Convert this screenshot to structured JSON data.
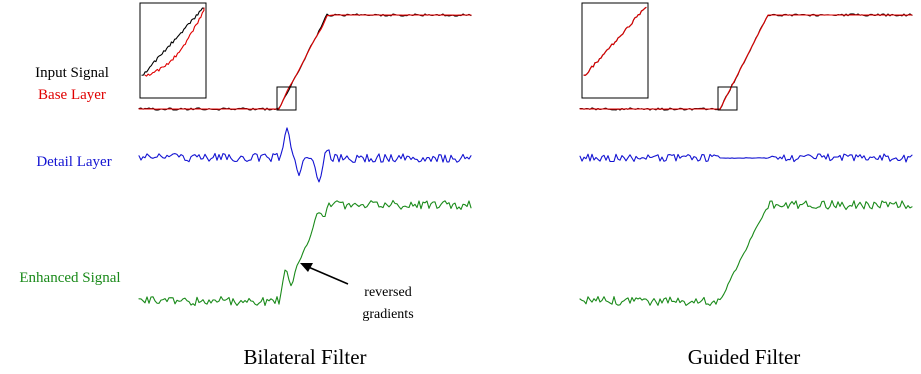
{
  "colors": {
    "input": "#000000",
    "base": "#e00000",
    "detail": "#1414d2",
    "enhanced": "#1a8a1a",
    "text": "#000000"
  },
  "labels": {
    "input_signal": "Input Signal",
    "base_layer": "Base Layer",
    "detail_layer": "Detail Layer",
    "enhanced_signal": "Enhanced Signal"
  },
  "panels": [
    {
      "caption": "Bilateral Filter"
    },
    {
      "caption": "Guided Filter"
    }
  ],
  "annotation": {
    "line1": "reversed",
    "line2": "gradients"
  }
}
